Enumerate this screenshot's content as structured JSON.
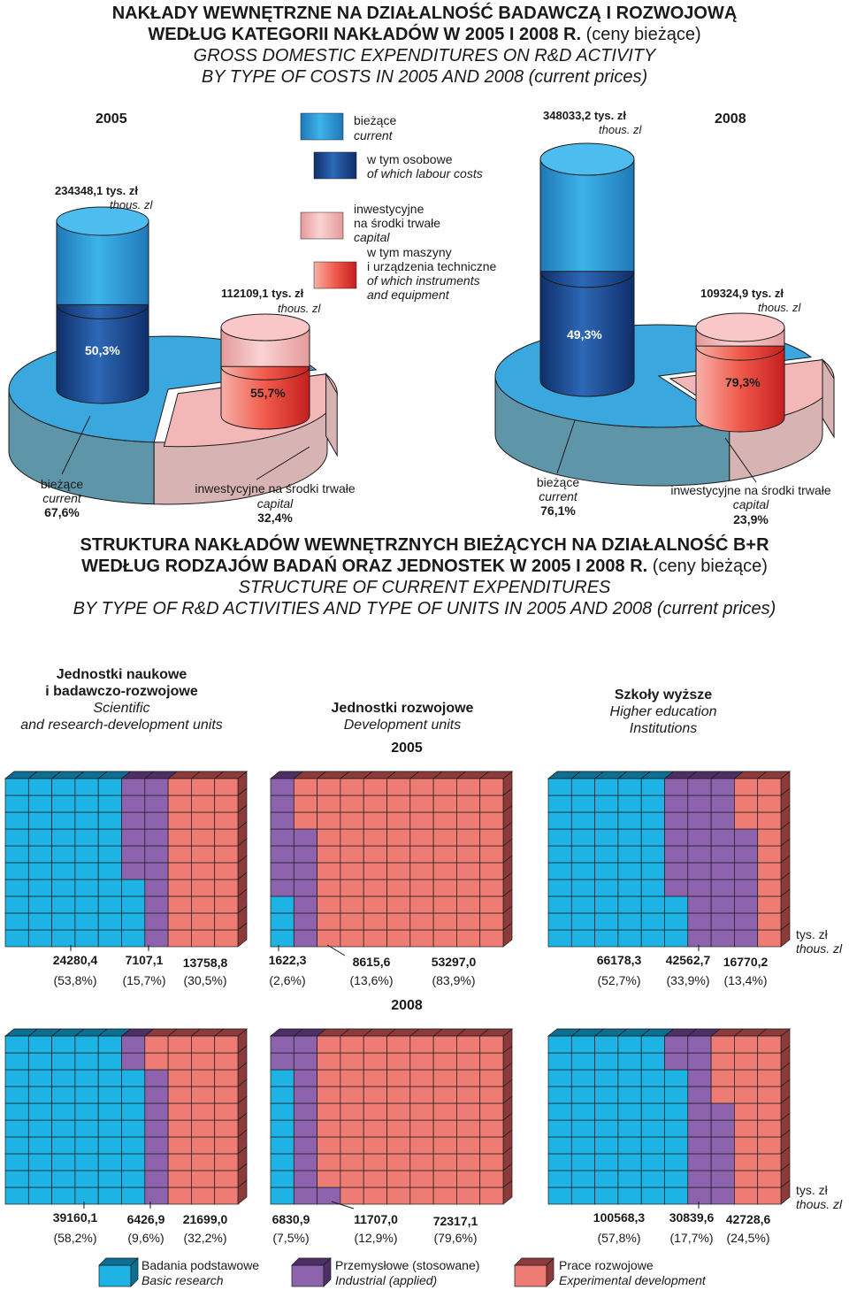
{
  "header": {
    "pl_title_1": "NAKŁADY WEWNĘTRZNE NA  DZIAŁALNOŚĆ  BADAWCZĄ  I  ROZWOJOWĄ",
    "pl_title_2a": "WEDŁUG KATEGORII NAKŁADÓW W 2005 I 2008 R.",
    "pl_title_2b": "(ceny bieżące)",
    "en_title_1": "GROSS DOMESTIC EXPENDITURES ON R&D ACTIVITY",
    "en_title_2": "BY TYPE OF COSTS IN 2005 AND 2008 (current prices)"
  },
  "top_chart": {
    "legend": {
      "current_pl": "bieżące",
      "current_en": "current",
      "labour_pl": "w tym osobowe",
      "labour_en": "of which labour costs",
      "capital_pl_1": "inwestycyjne",
      "capital_pl_2": "na środki trwałe",
      "capital_en": "capital",
      "machinery_pl_1": "w tym maszyny",
      "machinery_pl_2": "i urządzenia techniczne",
      "machinery_en_1": "of which instruments",
      "machinery_en_2": "and equipment"
    },
    "years": [
      {
        "year": "2005",
        "current_value": "234348,1 tys. zł",
        "current_unit_en": "thous. zl",
        "current_share": "50,3%",
        "capital_value": "112109,1 tys. zł",
        "capital_unit_en": "thous. zl",
        "capital_share": "55,7%",
        "pie_current_pl": "bieżące",
        "pie_current_en": "current",
        "pie_current_pct": "67,6%",
        "pie_capital_pl": "inwestycyjne na środki trwałe",
        "pie_capital_en": "capital",
        "pie_capital_pct": "32,4%"
      },
      {
        "year": "2008",
        "current_value": "348033,2 tys. zł",
        "current_unit_en": "thous. zl",
        "current_share": "49,3%",
        "capital_value": "109324,9 tys. zł",
        "capital_unit_en": "thous. zl",
        "capital_share": "79,3%",
        "pie_current_pl": "bieżące",
        "pie_current_en": "current",
        "pie_current_pct": "76,1%",
        "pie_capital_pl": "inwestycyjne na środki trwałe",
        "pie_capital_en": "capital",
        "pie_capital_pct": "23,9%"
      }
    ],
    "colors": {
      "current": "#3aa8de",
      "labour": "#1d4f96",
      "capital": "#f4b7b7",
      "machinery": "#ee3333",
      "pie_current_side": "#5f95a9",
      "pie_capital_side": "#d8b3b3"
    }
  },
  "structure": {
    "pl_title_1": "STRUKTURA NAKŁADÓW WEWNĘTRZNYCH BIEŻĄCYCH NA DZIAŁALNOŚĆ B+R",
    "pl_title_2a": "WEDŁUG RODZAJÓW BADAŃ ORAZ JEDNOSTEK W 2005 I 2008 R.",
    "pl_title_2b": "(ceny bieżące)",
    "en_title_1": "STRUCTURE OF CURRENT EXPENDITURES",
    "en_title_2": "BY TYPE OF R&D ACTIVITIES AND TYPE OF UNITS IN 2005 AND 2008 (current prices)",
    "units": [
      {
        "pl_1": "Jednostki naukowe",
        "pl_2": "i badawczo-rozwojowe",
        "en_1": "Scientific",
        "en_2": "and research-development units"
      },
      {
        "pl_1": "Jednostki rozwojowe",
        "en_1": "Development units"
      },
      {
        "pl_1": "Szkoły wyższe",
        "en_1": "Higher education",
        "en_2": "Institutions"
      }
    ],
    "unit_label_pl": "tys. zł",
    "unit_label_en": "thous. zl",
    "years": [
      "2005",
      "2008"
    ]
  },
  "chart_data": {
    "type": "bar",
    "title": "STRUKTURA NAKŁADÓW WEWNĘTRZNYCH BIEŻĄCYCH NA DZIAŁALNOŚĆ B+R WEDŁUG RODZAJÓW BADAŃ ORAZ JEDNOSTEK W 2005 I 2008 R. (ceny bieżące)",
    "series_names": [
      "Basic research",
      "Industrial (applied)",
      "Experimental development"
    ],
    "panels": [
      {
        "year": "2005",
        "unit": "Jednostki naukowe i badawczo-rozwojowe",
        "values": [
          "24280,4",
          "7107,1",
          "13758,8"
        ],
        "shares": [
          "(53,8%)",
          "(15,7%)",
          "(30,5%)"
        ],
        "pct": [
          53.8,
          15.7,
          30.5
        ]
      },
      {
        "year": "2005",
        "unit": "Jednostki rozwojowe",
        "values": [
          "1622,3",
          "8615,6",
          "53297,0"
        ],
        "shares": [
          "(2,6%)",
          "(13,6%)",
          "(83,9%)"
        ],
        "pct": [
          2.6,
          13.6,
          83.9
        ]
      },
      {
        "year": "2005",
        "unit": "Szkoły wyższe",
        "values": [
          "66178,3",
          "42562,7",
          "16770,2"
        ],
        "shares": [
          "(52,7%)",
          "(33,9%)",
          "(13,4%)"
        ],
        "pct": [
          52.7,
          33.9,
          13.4
        ]
      },
      {
        "year": "2008",
        "unit": "Jednostki naukowe i badawczo-rozwojowe",
        "values": [
          "39160,1",
          "6426,9",
          "21699,0"
        ],
        "shares": [
          "(58,2%)",
          "(9,6%)",
          "(32,2%)"
        ],
        "pct": [
          58.2,
          9.6,
          32.2
        ]
      },
      {
        "year": "2008",
        "unit": "Jednostki rozwojowe",
        "values": [
          "6830,9",
          "11707,0",
          "72317,1"
        ],
        "shares": [
          "(7,5%)",
          "(12,9%)",
          "(79,6%)"
        ],
        "pct": [
          7.5,
          12.9,
          79.6
        ]
      },
      {
        "year": "2008",
        "unit": "Szkoły wyższe",
        "values": [
          "100568,3",
          "30839,6",
          "42728,6"
        ],
        "shares": [
          "(57,8%)",
          "(17,7%)",
          "(24,5%)"
        ],
        "pct": [
          57.8,
          17.7,
          24.5
        ]
      }
    ]
  },
  "legend": [
    {
      "pl": "Badania podstawowe",
      "en": "Basic research",
      "color": "#1eb3e5",
      "side": "#0b6e93"
    },
    {
      "pl": "Przemysłowe (stosowane)",
      "en": "Industrial (applied)",
      "color": "#8c63ac",
      "side": "#4d2f66"
    },
    {
      "pl": "Prace rozwojowe",
      "en": "Experimental development",
      "color": "#ef7c74",
      "side": "#8d3a3a"
    }
  ]
}
